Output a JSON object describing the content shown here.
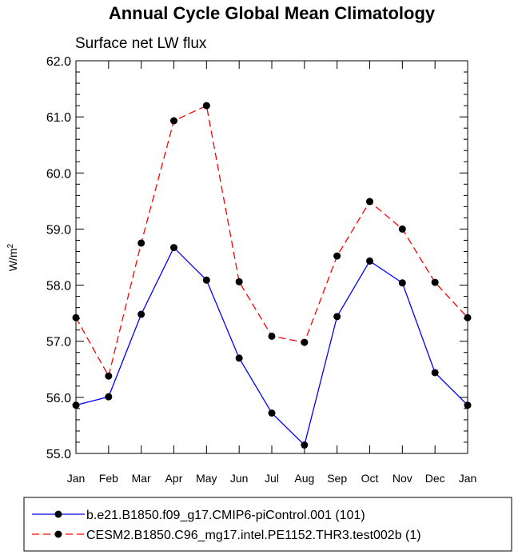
{
  "chart_data": {
    "type": "line",
    "title": "Annual Cycle Global Mean Climatology",
    "subtitle": "Surface net LW flux",
    "ylabel": "W/m",
    "ylabel_sup": "2",
    "xlabel": "",
    "categories": [
      "Jan",
      "Feb",
      "Mar",
      "Apr",
      "May",
      "Jun",
      "Jul",
      "Aug",
      "Sep",
      "Oct",
      "Nov",
      "Dec",
      "Jan"
    ],
    "ylim": [
      55.0,
      62.0
    ],
    "yticks": [
      "55.0",
      "56.0",
      "57.0",
      "58.0",
      "59.0",
      "60.0",
      "61.0",
      "62.0"
    ],
    "series": [
      {
        "name": "b.e21.B1850.f09_g17.CMIP6-piControl.001 (101)",
        "color": "#0000ff",
        "dash": "solid",
        "values": [
          55.86,
          56.01,
          57.48,
          58.67,
          58.09,
          56.7,
          55.72,
          55.15,
          57.44,
          58.43,
          58.04,
          56.44,
          55.86
        ]
      },
      {
        "name": "CESM2.B1850.C96_mg17.intel.PE1152.THR3.test002b (1)",
        "color": "#ff0000",
        "dash": "dashed",
        "values": [
          57.42,
          56.38,
          58.75,
          60.93,
          61.2,
          58.06,
          57.09,
          56.98,
          58.52,
          59.49,
          59.0,
          58.05,
          57.42
        ]
      }
    ],
    "legend_position": "bottom"
  }
}
